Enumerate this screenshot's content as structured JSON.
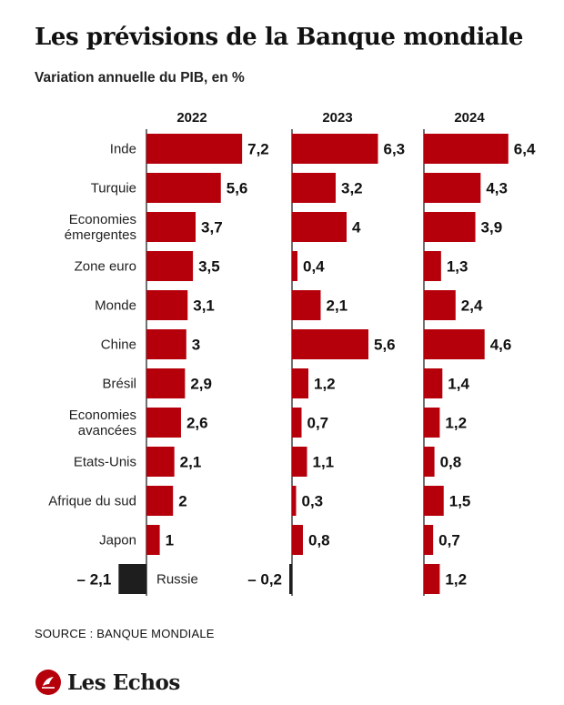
{
  "title": "Les prévisions de la Banque mondiale",
  "subtitle": "Variation annuelle du PIB, en %",
  "source": "SOURCE : BANQUE MONDIALE",
  "brand": "Les Echos",
  "colors": {
    "bar": "#b5000b",
    "negative_bar": "#1e1e1e",
    "axis": "#111111"
  },
  "chart_data": {
    "type": "bar",
    "orientation": "horizontal",
    "categories": [
      "Inde",
      "Turquie",
      "Economies\némergentes",
      "Zone euro",
      "Monde",
      "Chine",
      "Brésil",
      "Economies\navancées",
      "Etats-Unis",
      "Afrique du sud",
      "Japon",
      "Russie"
    ],
    "series": [
      {
        "name": "2022",
        "values": [
          7.2,
          5.6,
          3.7,
          3.5,
          3.1,
          3,
          2.9,
          2.6,
          2.1,
          2,
          1,
          -2.1
        ],
        "labels": [
          "7,2",
          "5,6",
          "3,7",
          "3,5",
          "3,1",
          "3",
          "2,9",
          "2,6",
          "2,1",
          "2",
          "1",
          "– 2,1"
        ]
      },
      {
        "name": "2023",
        "values": [
          6.3,
          3.2,
          4,
          0.4,
          2.1,
          5.6,
          1.2,
          0.7,
          1.1,
          0.3,
          0.8,
          -0.2
        ],
        "labels": [
          "6,3",
          "3,2",
          "4",
          "0,4",
          "2,1",
          "5,6",
          "1,2",
          "0,7",
          "1,1",
          "0,3",
          "0,8",
          "– 0,2"
        ]
      },
      {
        "name": "2024",
        "values": [
          6.4,
          4.3,
          3.9,
          1.3,
          2.4,
          4.6,
          1.4,
          1.2,
          0.8,
          1.5,
          0.7,
          1.2
        ],
        "labels": [
          "6,4",
          "4,3",
          "3,9",
          "1,3",
          "2,4",
          "4,6",
          "1,4",
          "1,2",
          "0,8",
          "1,5",
          "0,7",
          "1,2"
        ]
      }
    ],
    "grid": false,
    "legend": "none"
  }
}
